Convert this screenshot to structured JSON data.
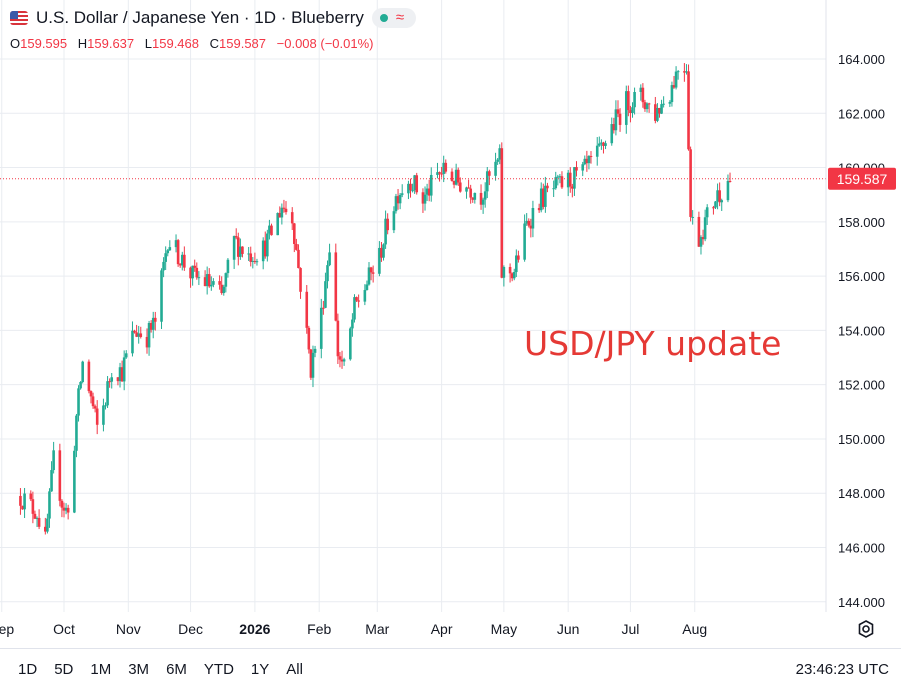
{
  "header": {
    "title": "U.S. Dollar / Japanese Yen · 1D · Blueberry",
    "flag_icon": "us-japan-flag-icon",
    "status_icons": [
      "market-open-dot-icon",
      "wave-icon"
    ],
    "ohlc": {
      "open_label": "O",
      "open": "159.595",
      "high_label": "H",
      "high": "159.637",
      "low_label": "L",
      "low": "159.468",
      "close_label": "C",
      "close": "159.587",
      "change": "−0.008 (−0.01%)"
    }
  },
  "colors": {
    "up": "#22ab94",
    "down": "#f23645",
    "grid": "#e9ecf1",
    "text": "#131722",
    "annotation": "#e53935"
  },
  "chart_data": {
    "type": "candlestick",
    "title": "U.S. Dollar / Japanese Yen · 1D · Blueberry",
    "annotation": "USD/JPY update",
    "price_label": "159.587",
    "ylim": [
      143.5,
      165.5
    ],
    "y_ticks": [
      "144.000",
      "146.000",
      "148.000",
      "150.000",
      "152.000",
      "154.000",
      "156.000",
      "158.000",
      "160.000",
      "162.000",
      "164.000"
    ],
    "x_ticks": [
      "Oct",
      "Nov",
      "Dec",
      "2026",
      "Feb",
      "Mar",
      "Apr",
      "May",
      "Jun",
      "Jul",
      "Aug",
      "Sep"
    ],
    "grid": true,
    "series": [
      {
        "values": [
          [
            "Sep 10",
            147.9
          ],
          [
            "Sep 18",
            147.3
          ],
          [
            "Sep 22",
            146.2
          ],
          [
            "Sep 26",
            149.2
          ],
          [
            "Sep 30",
            147.7
          ],
          [
            "Oct 3",
            147.2
          ],
          [
            "Oct 7",
            150.8
          ],
          [
            "Oct 10",
            152.8
          ],
          [
            "Oct 14",
            151.5
          ],
          [
            "Oct 17",
            150.4
          ],
          [
            "Oct 21",
            151.5
          ],
          [
            "Oct 24",
            152.6
          ],
          [
            "Oct 29",
            152.5
          ],
          [
            "Nov 4",
            154.0
          ],
          [
            "Nov 10",
            153.8
          ],
          [
            "Nov 14",
            154.3
          ],
          [
            "Nov 20",
            157.4
          ],
          [
            "Nov 26",
            156.7
          ],
          [
            "Dec 2",
            156.0
          ],
          [
            "Dec 8",
            155.8
          ],
          [
            "Dec 12",
            155.6
          ],
          [
            "Dec 16",
            155.2
          ],
          [
            "Dec 22",
            157.3
          ],
          [
            "Dec 29",
            156.8
          ],
          [
            "Jan 5",
            157.0
          ],
          [
            "Jan 9",
            157.6
          ],
          [
            "Jan 14",
            158.6
          ],
          [
            "Jan 19",
            158.2
          ],
          [
            "Jan 23",
            155.7
          ],
          [
            "Jan 28",
            152.6
          ],
          [
            "Feb 2",
            154.6
          ],
          [
            "Feb 6",
            157.2
          ],
          [
            "Feb 10",
            153.2
          ],
          [
            "Feb 13",
            152.6
          ],
          [
            "Feb 18",
            154.8
          ],
          [
            "Feb 23",
            155.6
          ],
          [
            "Mar 2",
            156.7
          ],
          [
            "Mar 6",
            158.0
          ],
          [
            "Mar 11",
            159.1
          ],
          [
            "Mar 17",
            159.6
          ],
          [
            "Mar 23",
            158.8
          ],
          [
            "Mar 30",
            159.7
          ],
          [
            "Apr 3",
            159.9
          ],
          [
            "Apr 8",
            159.5
          ],
          [
            "Apr 14",
            159.3
          ],
          [
            "Apr 20",
            159.0
          ],
          [
            "Apr 24",
            159.6
          ],
          [
            "Apr 29",
            160.3
          ],
          [
            "Apr 30",
            156.1
          ],
          [
            "May 6",
            156.2
          ],
          [
            "May 12",
            157.9
          ],
          [
            "May 18",
            158.8
          ],
          [
            "May 25",
            159.2
          ],
          [
            "Jun 1",
            159.5
          ],
          [
            "Jun 8",
            159.8
          ],
          [
            "Jun 15",
            160.4
          ],
          [
            "Jun 22",
            161.5
          ],
          [
            "Jun 29",
            162.4
          ],
          [
            "Jul 6",
            162.6
          ],
          [
            "Jul 13",
            162.0
          ],
          [
            "Jul 20",
            162.8
          ],
          [
            "Jul 24",
            163.7
          ],
          [
            "Jul 28",
            163.8
          ],
          [
            "Jul 30",
            158.2
          ],
          [
            "Aug 3",
            157.4
          ],
          [
            "Aug 7",
            158.2
          ],
          [
            "Aug 11",
            158.9
          ],
          [
            "Aug 14",
            159.2
          ],
          [
            "Aug 18",
            159.6
          ]
        ]
      }
    ]
  },
  "bottom": {
    "ranges": [
      "1D",
      "5D",
      "1M",
      "3M",
      "6M",
      "YTD",
      "1Y",
      "All"
    ],
    "clock": "23:46:23 UTC",
    "settings_icon": "gear-settings-icon"
  }
}
